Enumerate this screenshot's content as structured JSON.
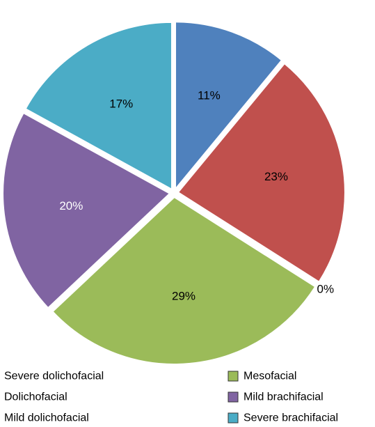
{
  "chart_data": {
    "type": "pie",
    "title": "",
    "slices": [
      {
        "label": "Severe dolichofacial",
        "value": 11,
        "display": "11%",
        "color": "#4f81bd",
        "label_color": "#000000"
      },
      {
        "label": "Dolichofacial",
        "value": 23,
        "display": "23%",
        "color": "#c0504d",
        "label_color": "#000000"
      },
      {
        "label": "Mild dolichofacial",
        "value": 0,
        "display": "0%",
        "color": "#9bbb59",
        "label_color": "#000000"
      },
      {
        "label": "Mesofacial",
        "value": 29,
        "display": "29%",
        "color": "#9bbb59",
        "label_color": "#000000"
      },
      {
        "label": "Mild brachifacial",
        "value": 20,
        "display": "20%",
        "color": "#8064a2",
        "label_color": "#ffffff"
      },
      {
        "label": "Severe brachifacial",
        "value": 17,
        "display": "17%",
        "color": "#4bacc6",
        "label_color": "#000000"
      }
    ],
    "legend": {
      "placement": "bottom",
      "items": [
        {
          "label": "Severe dolichofacial",
          "color": "#4f81bd"
        },
        {
          "label": "Mesofacial",
          "color": "#9bbb59"
        },
        {
          "label": "Dolichofacial",
          "color": "#c0504d"
        },
        {
          "label": "Mild brachifacial",
          "color": "#8064a2"
        },
        {
          "label": "Mild dolichofacial",
          "color": "#9bbb59"
        },
        {
          "label": "Severe brachifacial",
          "color": "#4bacc6"
        }
      ]
    }
  }
}
